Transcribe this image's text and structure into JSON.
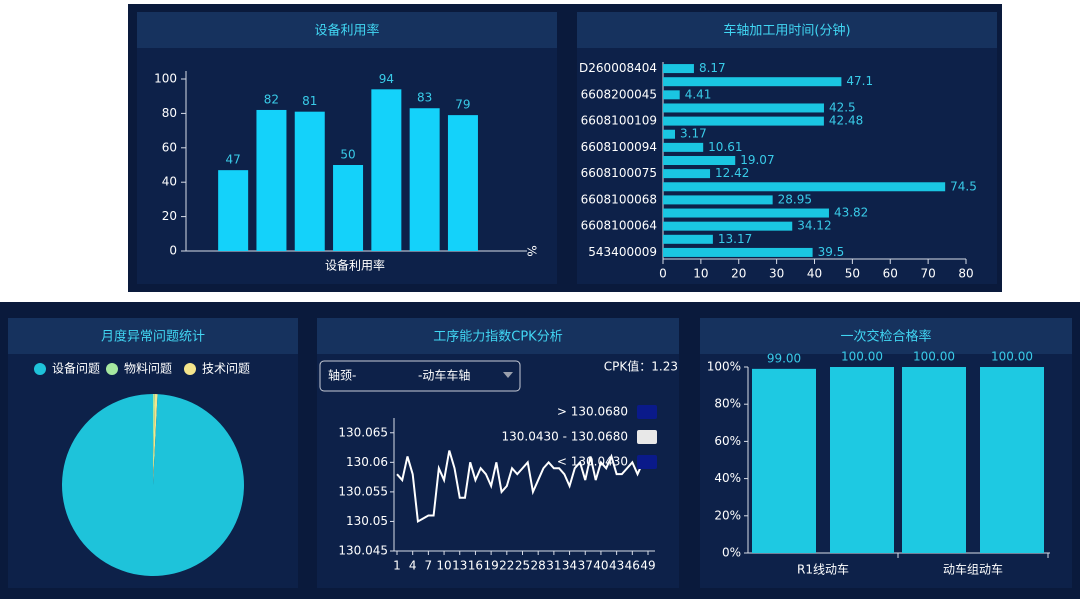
{
  "chart_data": [
    {
      "type": "bar",
      "title": "设备利用率",
      "xlabel": "设备利用率",
      "ylabel": "%",
      "categories": [
        null,
        null,
        null,
        null,
        null,
        null,
        null
      ],
      "values": [
        47,
        82,
        81,
        50,
        94,
        83,
        79
      ],
      "color": "#14d2fa",
      "ylim": [
        0,
        100
      ],
      "yticks": [
        0,
        20,
        40,
        60,
        80,
        100
      ]
    },
    {
      "type": "hbar",
      "title": "车轴加工用时间(分钟)",
      "categories": [
        "D260008404",
        null,
        "6608200045",
        null,
        "6608100109",
        null,
        "6608100094",
        null,
        "6608100075",
        null,
        "6608100068",
        null,
        "6608100064",
        null,
        "543400009"
      ],
      "values": [
        8.17,
        47.1,
        4.41,
        42.5,
        42.48,
        3.17,
        10.61,
        19.07,
        12.42,
        74.5,
        28.95,
        43.82,
        34.12,
        13.17,
        39.5
      ],
      "color": "#1ac6e2",
      "xlim": [
        0,
        80
      ],
      "xticks": [
        0,
        10,
        20,
        30,
        40,
        50,
        60,
        70,
        80
      ]
    },
    {
      "type": "pie",
      "title": "月度异常问题统计",
      "categories": [
        "设备问题",
        "物料问题",
        "技术问题"
      ],
      "values": [
        99.2,
        0.3,
        0.5
      ],
      "colors": [
        "#1ec3da",
        "#a6e8a0",
        "#f4e58c"
      ]
    },
    {
      "type": "line",
      "title": "工序能力指数CPK分析",
      "dropdown": [
        "轴颈-",
        "-动车车轴"
      ],
      "cpk_label": "CPK值：1.23",
      "x": [
        1,
        2,
        3,
        4,
        5,
        6,
        7,
        8,
        9,
        10,
        11,
        12,
        13,
        14,
        15,
        16,
        17,
        18,
        19,
        20,
        21,
        22,
        23,
        24,
        25,
        26,
        27,
        28,
        29,
        30,
        31,
        32,
        33,
        34,
        35,
        36,
        37,
        38,
        39,
        40,
        41,
        42,
        43,
        44,
        45,
        46,
        47,
        48,
        49
      ],
      "values": [
        130.058,
        130.057,
        130.061,
        130.058,
        130.05,
        130.0505,
        130.051,
        130.051,
        130.059,
        130.057,
        130.062,
        130.059,
        130.054,
        130.054,
        130.06,
        130.057,
        130.059,
        130.058,
        130.056,
        130.06,
        130.055,
        130.056,
        130.059,
        130.058,
        130.059,
        130.06,
        130.055,
        130.057,
        130.059,
        130.06,
        130.059,
        130.059,
        130.058,
        130.056,
        130.059,
        130.06,
        130.057,
        130.061,
        130.057,
        130.06,
        130.059,
        130.061,
        130.058,
        130.058,
        130.059,
        130.06,
        130.058,
        130.06,
        130.059
      ],
      "color": "#ffffff",
      "xlim": [
        1,
        49
      ],
      "xticks": [
        1,
        4,
        7,
        10,
        13,
        16,
        19,
        22,
        25,
        28,
        31,
        34,
        37,
        40,
        43,
        46,
        49
      ],
      "ylim": [
        130.045,
        130.0675
      ],
      "yticks": [
        130.045,
        130.05,
        130.055,
        130.06,
        130.065
      ],
      "pieces": [
        {
          "label": "> 130.0680",
          "color": "#0a1a8a"
        },
        {
          "label": "130.0430 - 130.0680",
          "color": "#e8e8e8"
        },
        {
          "label": "< 130.0430",
          "color": "#0a1a8a"
        }
      ]
    },
    {
      "type": "groupbar",
      "title": "一次交检合格率",
      "categories": [
        "R1线动车",
        "动车组动车"
      ],
      "series": [
        {
          "color": "#1ec9e2",
          "values": [
            99,
            100
          ],
          "value_labels": [
            "99.00",
            "100.00"
          ]
        },
        {
          "color": "#1ec9e2",
          "values": [
            100,
            100
          ],
          "value_labels": [
            "100.00",
            "100.00"
          ]
        }
      ],
      "ylim": [
        0,
        100
      ],
      "yticks": [
        {
          "value": 0,
          "label": "0%"
        },
        {
          "value": 20,
          "label": "20%"
        },
        {
          "value": 40,
          "label": "40%"
        },
        {
          "value": 60,
          "label": "60%"
        },
        {
          "value": 80,
          "label": "80%"
        },
        {
          "value": 100,
          "label": "100%"
        }
      ]
    }
  ]
}
